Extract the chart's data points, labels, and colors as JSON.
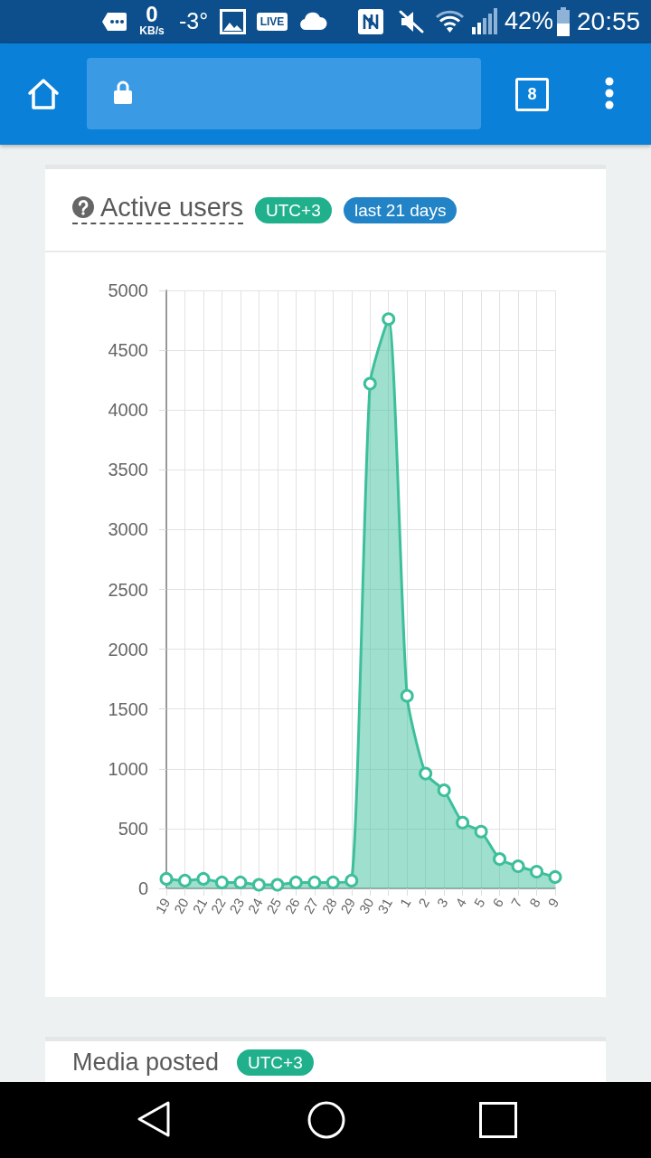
{
  "chart_data": {
    "type": "area",
    "title": "Active users",
    "annotations": [
      "0",
      "KB/s",
      "-3°",
      "LIVE",
      "42%",
      "20:55",
      "8",
      "UTC+3",
      "last 21 days",
      "Media posted",
      "UTC+3"
    ],
    "categories": [
      "19",
      "20",
      "21",
      "22",
      "23",
      "24",
      "25",
      "26",
      "27",
      "28",
      "29",
      "30",
      "31",
      "1",
      "2",
      "3",
      "4",
      "5",
      "6",
      "7",
      "8",
      "9"
    ],
    "values": [
      80,
      65,
      80,
      50,
      50,
      30,
      30,
      50,
      50,
      50,
      65,
      4220,
      4760,
      1610,
      960,
      820,
      550,
      475,
      245,
      185,
      140,
      95
    ],
    "color": "#3dbf9b",
    "ylim": [
      0,
      5000
    ],
    "yticks": [
      0,
      500,
      1000,
      1500,
      2000,
      2500,
      3000,
      3500,
      4000,
      4500,
      5000
    ],
    "grid": true,
    "marker": "circle"
  }
}
